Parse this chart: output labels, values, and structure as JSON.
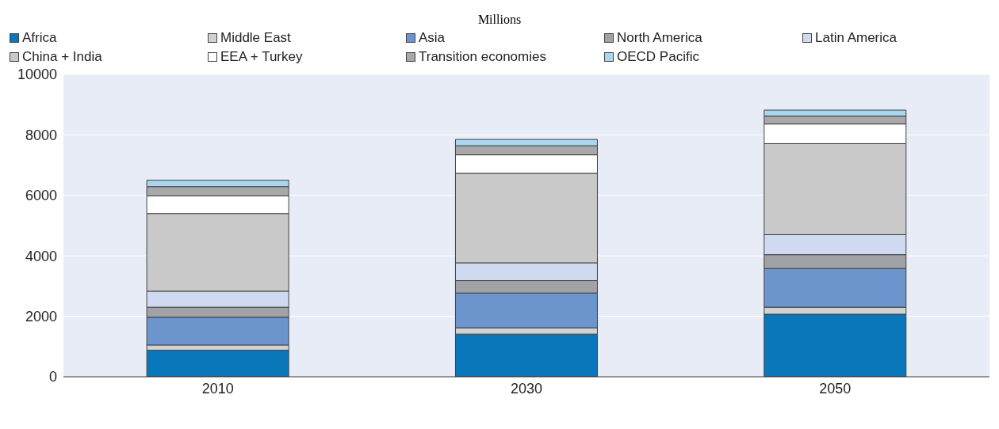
{
  "chart_data": {
    "type": "bar",
    "subtitle": "Millions",
    "categories": [
      "2010",
      "2030",
      "2050"
    ],
    "stacked": true,
    "series": [
      {
        "name": "Africa",
        "color": "#0b77bb",
        "values": [
          880,
          1410,
          2070
        ]
      },
      {
        "name": "Middle East",
        "color": "#d0d2d3",
        "values": [
          170,
          210,
          230
        ]
      },
      {
        "name": "Asia",
        "color": "#6b95cc",
        "values": [
          920,
          1150,
          1280
        ]
      },
      {
        "name": "North America",
        "color": "#a1a2a5",
        "values": [
          330,
          410,
          460
        ]
      },
      {
        "name": "Latin America",
        "color": "#cfd9ef",
        "values": [
          530,
          590,
          660
        ]
      },
      {
        "name": "China + India",
        "color": "#c9c9c9",
        "values": [
          2570,
          2960,
          3010
        ]
      },
      {
        "name": "EEA + Turkey",
        "color": "#ffffff",
        "values": [
          580,
          610,
          650
        ]
      },
      {
        "name": "Transition economies",
        "color": "#a8a8a8",
        "values": [
          310,
          300,
          260
        ]
      },
      {
        "name": "OECD Pacific",
        "color": "#a9d6ee",
        "values": [
          210,
          210,
          200
        ]
      }
    ],
    "ylim": [
      0,
      10000
    ],
    "yticks": [
      0,
      2000,
      4000,
      6000,
      8000,
      10000
    ],
    "grid": "y",
    "legend": "top"
  }
}
